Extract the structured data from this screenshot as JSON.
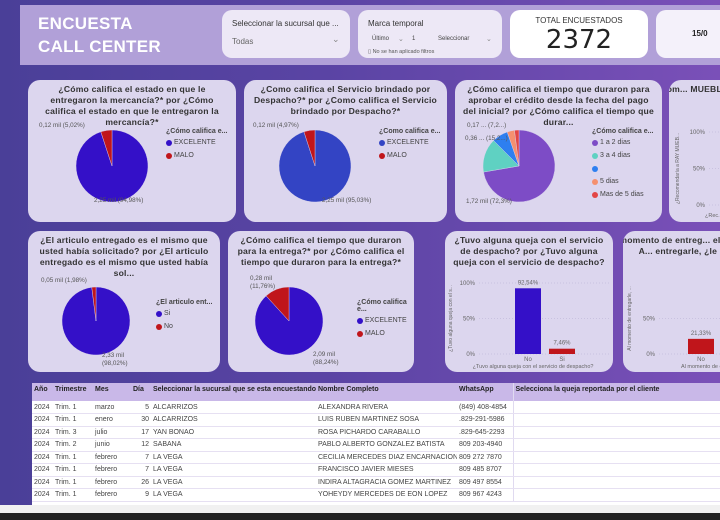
{
  "header": {
    "title_line1": "ENCUESTA",
    "title_line2": "CALL CENTER",
    "sucursal_slicer": {
      "label": "Seleccionar la sucursal que ...",
      "value": "Todas"
    },
    "marca_temporal": {
      "label": "Marca temporal",
      "mode": "Último",
      "count": "1",
      "unit": "Seleccionar",
      "status": "No se han aplicado filtros"
    },
    "total": {
      "label": "TOTAL ENCUESTADOS",
      "value": "2372"
    },
    "date_card": {
      "value": "15/0"
    }
  },
  "colors": {
    "blue": "#3410c8",
    "blue2": "#3344c4",
    "red": "#c0151b",
    "purple": "#7d4cc6",
    "teal": "#5fd1c2",
    "azure": "#2e7ff0",
    "salmon": "#f5906f",
    "coral": "#e34646"
  },
  "charts": [
    {
      "title": "¿Cómo califica el estado en que le entregaron la mercancía?* por ¿Cómo califica el estado en que le entregaron la mercancía?*",
      "type": "pie",
      "legend_title": "¿Cómo califica e...",
      "slices": [
        {
          "name": "EXCELENTE",
          "value": 94.98,
          "label": "2,25 mil (94,98%)",
          "color": "#3410c8"
        },
        {
          "name": "MALO",
          "value": 5.02,
          "label": "0,12 mil (5,02%)",
          "color": "#c0151b"
        }
      ]
    },
    {
      "title": "¿Como califica el Servicio brindado por Despacho?* por ¿Como califica el Servicio brindado por Despacho?*",
      "type": "pie",
      "legend_title": "¿Como califica e...",
      "slices": [
        {
          "name": "EXCELENTE",
          "value": 95.03,
          "label": "2,25 mil (95,03%)",
          "color": "#3344c4"
        },
        {
          "name": "MALO",
          "value": 4.97,
          "label": "0,12 mil (4,97%)",
          "color": "#c0151b"
        }
      ]
    },
    {
      "title": "¿Cómo califica el tiempo que duraron para aprobar el crédito desde la fecha del pago del inicial? por ¿Cómo califica el tiempo que durar...",
      "type": "pie",
      "legend_title": "¿Cómo califica e...",
      "slices": [
        {
          "name": "1 a 2 dias",
          "value": 72.3,
          "label": "1,72 mil (72,3%)",
          "color": "#7d4cc6"
        },
        {
          "name": "3 a 4 dias",
          "value": 15.2,
          "label": "0,36 ... (15,2...)",
          "color": "#5fd1c2"
        },
        {
          "name": "",
          "value": 7.2,
          "label": "0,17 ... (7,2...)",
          "color": "#2e7ff0"
        },
        {
          "name": "5 dias",
          "value": 3.3,
          "label": "",
          "color": "#f5906f"
        },
        {
          "name": "Mas de 5 dias",
          "value": 2.0,
          "label": "",
          "color": "#e34646"
        }
      ]
    },
    {
      "title": "¿Recom... MUEBLE... familiar o v...",
      "type": "bar",
      "ylabel": "¿Recomendaría a RAY MUEB...",
      "yticks": [
        "100%",
        "50%",
        "0%"
      ],
      "xlabel": "¿Rec..."
    },
    {
      "title": "¿El articulo entregado es el mismo que usted había solicitado? por ¿El articulo entregado es el mismo que usted había sol...",
      "type": "pie",
      "legend_title": "¿El articulo ent...",
      "slices": [
        {
          "name": "Si",
          "value": 98.02,
          "label": "2,33 mil (98,02%)",
          "color": "#3410c8"
        },
        {
          "name": "No",
          "value": 1.98,
          "label": "0,05 mil (1,98%)",
          "color": "#c0151b"
        }
      ]
    },
    {
      "title": "¿Cómo califica el tiempo que duraron para la entrega?* por ¿Cómo califica el tiempo que duraron para la entrega?*",
      "type": "pie",
      "legend_title": "¿Cómo califica e...",
      "slices": [
        {
          "name": "EXCELENTE",
          "value": 88.24,
          "label": "2,09 mil (88,24%)",
          "color": "#3410c8"
        },
        {
          "name": "MALO",
          "value": 11.76,
          "label": "0,28 mil (11,76%)",
          "color": "#c0151b"
        }
      ]
    },
    {
      "title": "¿Tuvo alguna queja con el servicio de despacho? por ¿Tuvo alguna queja con el servicio de despacho?",
      "type": "bar",
      "ylabel": "¿Tuvo alguna queja con el s...",
      "xlabel": "¿Tuvo alguna queja con el servicio de despacho?",
      "ylim": [
        0,
        100
      ],
      "yticks": [
        "100%",
        "50%",
        "0%"
      ],
      "categories": [
        "No",
        "Si"
      ],
      "values": [
        92.54,
        7.46
      ],
      "labels": [
        "92,54%",
        "7,46%"
      ],
      "colors": [
        "#3410c8",
        "#c0151b"
      ]
    },
    {
      "title": "Al momento de entreg... el articulo? por A... entregarle, ¿le prob...",
      "type": "bar",
      "ylabel": "Al momento de entregarle, ...",
      "xlabel": "Al momento de entrega...",
      "ylim": [
        0,
        100
      ],
      "yticks": [
        "50%",
        "0%"
      ],
      "categories": [
        "No"
      ],
      "values": [
        21.33
      ],
      "labels": [
        "21,33%"
      ],
      "colors": [
        "#c0151b"
      ]
    }
  ],
  "table": {
    "columns": [
      "Año",
      "Trimestre",
      "Mes",
      "Día",
      "Seleccionar la sucursal que se esta encuestando:",
      "Nombre Completo",
      "WhatsApp",
      "Selecciona la queja reportada por el cliente"
    ],
    "rows": [
      [
        "2024",
        "Trim. 1",
        "marzo",
        "5",
        "ALCARRIZOS",
        "ALEXANDRA RIVERA",
        "(849) 408-4854",
        ""
      ],
      [
        "2024",
        "Trim. 1",
        "enero",
        "30",
        "ALCARRIZOS",
        "LUIS RUBEN MARTINEZ SOSA",
        ".829-291-5986",
        ""
      ],
      [
        "2024",
        "Trim. 3",
        "julio",
        "17",
        "YAN BONAO",
        "ROSA PICHARDO CARABALLO",
        ".829-645-2293",
        ""
      ],
      [
        "2024",
        "Trim. 2",
        "junio",
        "12",
        "SABANA",
        "PABLO ALBERTO GONZALEZ BATISTA",
        "809 203-4940",
        ""
      ],
      [
        "2024",
        "Trim. 1",
        "febrero",
        "7",
        "LA VEGA",
        "CECILIA MERCEDES DIAZ ENCARNACION",
        "809 272 7870",
        ""
      ],
      [
        "2024",
        "Trim. 1",
        "febrero",
        "7",
        "LA VEGA",
        "FRANCISCO JAVIER MIESES",
        "809 485 8707",
        ""
      ],
      [
        "2024",
        "Trim. 1",
        "febrero",
        "26",
        "LA VEGA",
        "INDIRA ALTAGRACIA GOMEZ MARTINEZ",
        "809 497 8554",
        ""
      ],
      [
        "2024",
        "Trim. 1",
        "febrero",
        "9",
        "LA VEGA",
        "YOHEYDY MERCEDES DE EON LOPEZ",
        "809 967 4243",
        ""
      ]
    ]
  }
}
